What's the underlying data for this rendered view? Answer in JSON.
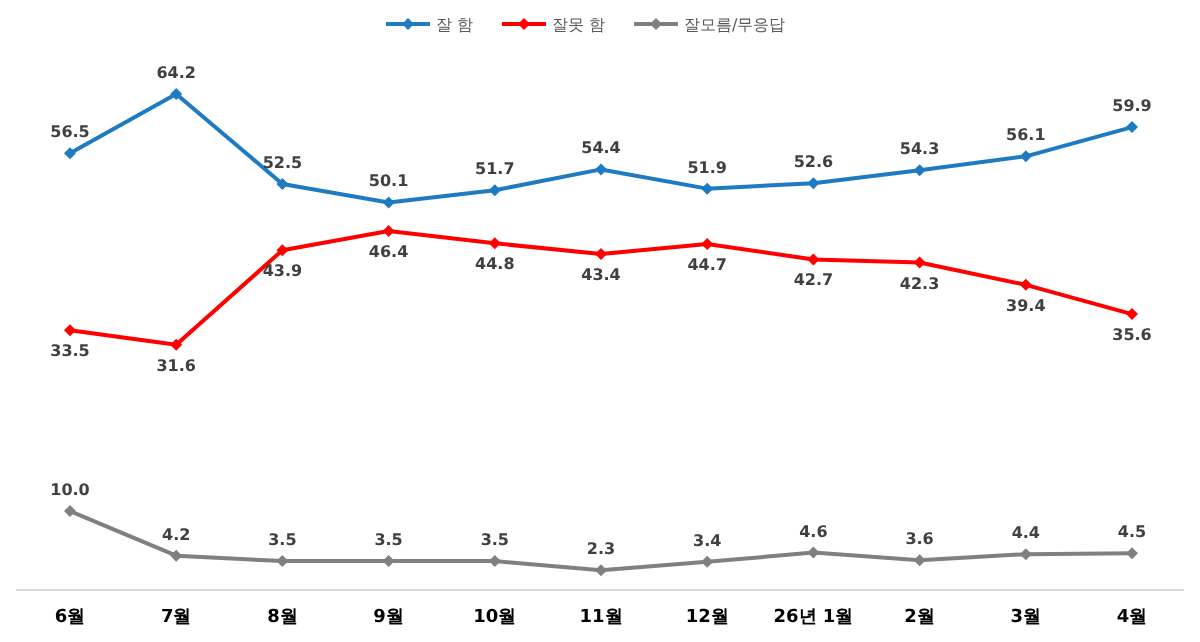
{
  "chart_data": {
    "type": "line",
    "categories": [
      "6월",
      "7월",
      "8월",
      "9월",
      "10월",
      "11월",
      "12월",
      "26년 1월",
      "2월",
      "3월",
      "4월"
    ],
    "series": [
      {
        "name": "잘 함",
        "color": "#1f7bc1",
        "values": [
          56.5,
          64.2,
          52.5,
          50.1,
          51.7,
          54.4,
          51.9,
          52.6,
          54.3,
          56.1,
          59.9
        ],
        "value_labels": [
          "56.5",
          "64.2",
          "52.5",
          "50.1",
          "51.7",
          "54.4",
          "51.9",
          "52.6",
          "54.3",
          "56.1",
          "59.9"
        ]
      },
      {
        "name": "잘못 함",
        "color": "#ff0000",
        "values": [
          33.5,
          31.6,
          43.9,
          46.4,
          44.8,
          43.4,
          44.7,
          42.7,
          42.3,
          39.4,
          35.6
        ],
        "value_labels": [
          "33.5",
          "31.6",
          "43.9",
          "46.4",
          "44.8",
          "43.4",
          "44.7",
          "42.7",
          "42.3",
          "39.4",
          "35.6"
        ]
      },
      {
        "name": "잘모름/무응답",
        "color": "#808080",
        "values": [
          10.0,
          4.2,
          3.5,
          3.5,
          3.5,
          2.3,
          3.4,
          4.6,
          3.6,
          4.4,
          4.5
        ],
        "value_labels": [
          "10.0",
          "4.2",
          "3.5",
          "3.5",
          "3.5",
          "2.3",
          "3.4",
          "4.6",
          "3.6",
          "4.4",
          "4.5"
        ]
      }
    ],
    "legend": "top",
    "marker": "diamond"
  }
}
